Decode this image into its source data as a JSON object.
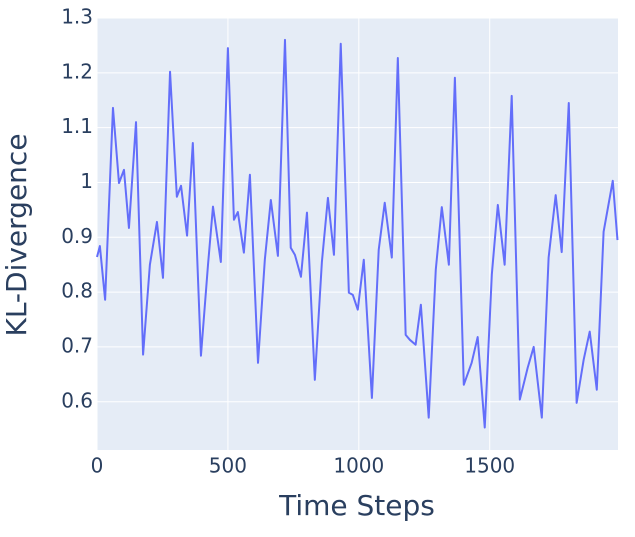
{
  "chart_data": {
    "type": "line",
    "xlabel": "Time Steps",
    "ylabel": "KL-Divergence",
    "x": [
      0,
      11,
      31,
      61,
      84,
      103,
      122,
      149,
      176,
      202,
      229,
      252,
      279,
      305,
      321,
      344,
      366,
      397,
      424,
      443,
      473,
      500,
      523,
      538,
      561,
      584,
      615,
      641,
      664,
      691,
      718,
      740,
      756,
      779,
      802,
      832,
      859,
      882,
      905,
      931,
      962,
      977,
      996,
      1019,
      1050,
      1076,
      1099,
      1126,
      1149,
      1179,
      1195,
      1217,
      1237,
      1267,
      1294,
      1317,
      1344,
      1367,
      1401,
      1431,
      1454,
      1481,
      1508,
      1531,
      1557,
      1584,
      1615,
      1645,
      1668,
      1699,
      1725,
      1752,
      1775,
      1802,
      1832,
      1859,
      1882,
      1909,
      1935,
      1970,
      1988
    ],
    "values": [
      0.864,
      0.884,
      0.786,
      1.136,
      0.999,
      1.023,
      0.917,
      1.11,
      0.686,
      0.85,
      0.928,
      0.826,
      1.202,
      0.974,
      0.994,
      0.903,
      1.072,
      0.684,
      0.85,
      0.956,
      0.855,
      1.245,
      0.932,
      0.946,
      0.872,
      1.014,
      0.671,
      0.859,
      0.968,
      0.866,
      1.26,
      0.881,
      0.868,
      0.828,
      0.945,
      0.64,
      0.855,
      0.972,
      0.868,
      1.253,
      0.799,
      0.795,
      0.768,
      0.859,
      0.607,
      0.877,
      0.963,
      0.863,
      1.227,
      0.722,
      0.713,
      0.704,
      0.777,
      0.571,
      0.841,
      0.955,
      0.85,
      1.191,
      0.631,
      0.671,
      0.718,
      0.553,
      0.832,
      0.959,
      0.85,
      1.158,
      0.604,
      0.662,
      0.7,
      0.571,
      0.863,
      0.977,
      0.873,
      1.145,
      0.598,
      0.677,
      0.728,
      0.622,
      0.91,
      1.003,
      0.895
    ],
    "color": "#636efa",
    "xlim": [
      0,
      1990
    ],
    "xticks": [
      0,
      500,
      1000,
      1500
    ],
    "ylim": [
      0.512,
      1.3
    ],
    "yticks": [
      0.6,
      0.7,
      0.8,
      0.9,
      1,
      1.1,
      1.2,
      1.3
    ],
    "grid": true
  }
}
